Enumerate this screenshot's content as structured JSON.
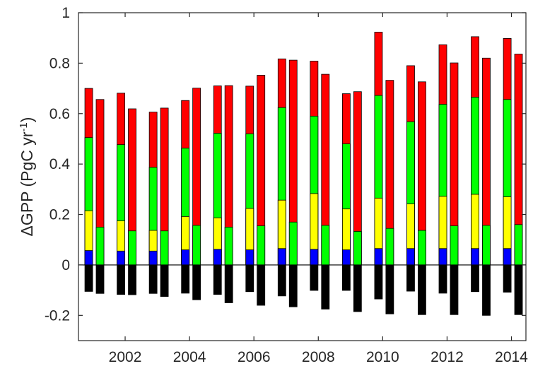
{
  "chart_data": {
    "type": "bar",
    "stacked": true,
    "ylabel": "ΔGPP (PgC yr-1)",
    "ylabel_parts": {
      "main": "ΔGPP (PgC yr",
      "sup": "-1",
      "tail": ")"
    },
    "ylim": [
      -0.3,
      1.0
    ],
    "xlim": [
      2000.55,
      2014.45
    ],
    "yticks": [
      "-0.2",
      "0",
      "0.2",
      "0.4",
      "0.6",
      "0.8",
      "1"
    ],
    "yticks_values": [
      -0.2,
      0,
      0.2,
      0.4,
      0.6,
      0.8,
      1.0
    ],
    "xticks": [
      "2002",
      "2004",
      "2006",
      "2008",
      "2010",
      "2012",
      "2014"
    ],
    "xticks_values": [
      2002,
      2004,
      2006,
      2008,
      2010,
      2012,
      2014
    ],
    "grid": false,
    "legend": "none",
    "colors": {
      "negative": "#000000",
      "blue": "#0000ff",
      "yellow": "#ffff00",
      "green": "#00ff00",
      "red": "#ff0000"
    },
    "bars": [
      {
        "x": 2000.87,
        "neg": -0.105,
        "blue": 0.057,
        "yellow": 0.215,
        "green": 0.505,
        "red": 0.7
      },
      {
        "x": 2001.22,
        "neg": -0.113,
        "green": 0.15,
        "red": 0.656
      },
      {
        "x": 2001.87,
        "neg": -0.117,
        "blue": 0.055,
        "yellow": 0.175,
        "green": 0.477,
        "red": 0.681
      },
      {
        "x": 2002.22,
        "neg": -0.118,
        "green": 0.135,
        "red": 0.619
      },
      {
        "x": 2002.87,
        "neg": -0.113,
        "blue": 0.055,
        "yellow": 0.137,
        "green": 0.387,
        "red": 0.606
      },
      {
        "x": 2003.22,
        "neg": -0.125,
        "green": 0.135,
        "red": 0.622
      },
      {
        "x": 2003.87,
        "neg": -0.112,
        "blue": 0.06,
        "yellow": 0.192,
        "green": 0.463,
        "red": 0.652
      },
      {
        "x": 2004.22,
        "neg": -0.138,
        "green": 0.157,
        "red": 0.701
      },
      {
        "x": 2004.87,
        "neg": -0.117,
        "blue": 0.062,
        "yellow": 0.187,
        "green": 0.522,
        "red": 0.71
      },
      {
        "x": 2005.22,
        "neg": -0.15,
        "green": 0.15,
        "red": 0.711
      },
      {
        "x": 2005.87,
        "neg": -0.106,
        "blue": 0.06,
        "yellow": 0.224,
        "green": 0.52,
        "red": 0.709
      },
      {
        "x": 2006.22,
        "neg": -0.16,
        "green": 0.155,
        "red": 0.752
      },
      {
        "x": 2006.87,
        "neg": -0.123,
        "blue": 0.065,
        "yellow": 0.257,
        "green": 0.624,
        "red": 0.817
      },
      {
        "x": 2007.22,
        "neg": -0.166,
        "green": 0.17,
        "red": 0.812
      },
      {
        "x": 2007.87,
        "neg": -0.101,
        "blue": 0.062,
        "yellow": 0.283,
        "green": 0.59,
        "red": 0.808
      },
      {
        "x": 2008.22,
        "neg": -0.175,
        "green": 0.157,
        "red": 0.756
      },
      {
        "x": 2008.87,
        "neg": -0.101,
        "blue": 0.06,
        "yellow": 0.222,
        "green": 0.48,
        "red": 0.679
      },
      {
        "x": 2009.22,
        "neg": -0.185,
        "green": 0.133,
        "red": 0.687
      },
      {
        "x": 2009.87,
        "neg": -0.135,
        "blue": 0.065,
        "yellow": 0.265,
        "green": 0.672,
        "red": 0.923
      },
      {
        "x": 2010.22,
        "neg": -0.194,
        "green": 0.145,
        "red": 0.732
      },
      {
        "x": 2010.87,
        "neg": -0.104,
        "blue": 0.065,
        "yellow": 0.242,
        "green": 0.568,
        "red": 0.79
      },
      {
        "x": 2011.22,
        "neg": -0.197,
        "green": 0.137,
        "red": 0.726
      },
      {
        "x": 2011.87,
        "neg": -0.112,
        "blue": 0.065,
        "yellow": 0.272,
        "green": 0.637,
        "red": 0.873
      },
      {
        "x": 2012.22,
        "neg": -0.197,
        "green": 0.155,
        "red": 0.801
      },
      {
        "x": 2012.87,
        "neg": -0.106,
        "blue": 0.065,
        "yellow": 0.28,
        "green": 0.665,
        "red": 0.905
      },
      {
        "x": 2013.22,
        "neg": -0.2,
        "green": 0.157,
        "red": 0.82
      },
      {
        "x": 2013.87,
        "neg": -0.108,
        "blue": 0.065,
        "yellow": 0.27,
        "green": 0.656,
        "red": 0.898
      },
      {
        "x": 2014.22,
        "neg": -0.197,
        "green": 0.16,
        "red": 0.836
      }
    ]
  }
}
